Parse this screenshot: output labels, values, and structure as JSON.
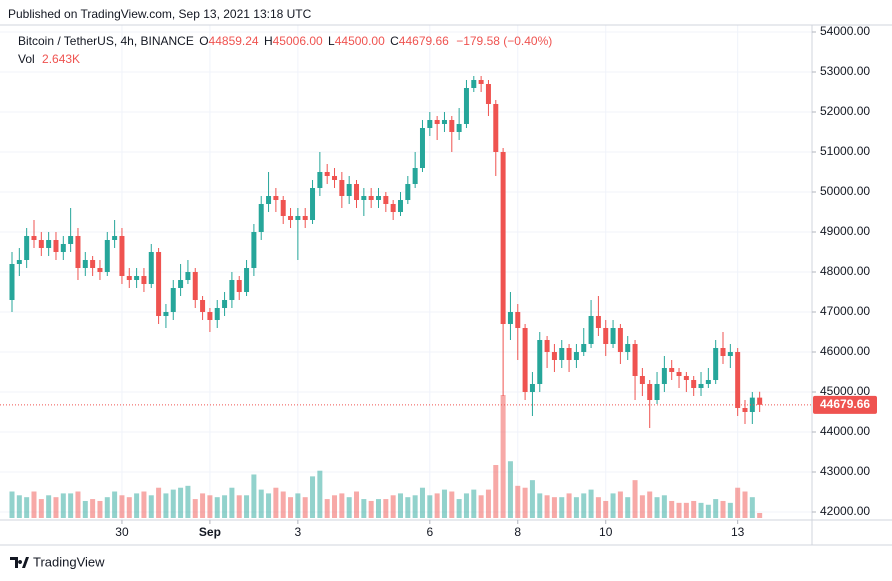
{
  "published": "Published on TradingView.com, Sep 13, 2021 13:18 UTC",
  "footer": "TradingView",
  "chart_data": {
    "type": "candlestick",
    "symbol": "Bitcoin / TetherUS, 4h, BINANCE",
    "legend": {
      "o_key": "O",
      "open": "44859.24",
      "h_key": "H",
      "high": "45006.00",
      "l_key": "L",
      "low": "44500.00",
      "c_key": "C",
      "close": "44679.66",
      "change": "−179.58 (−0.40%)",
      "vol_key": "Vol",
      "volume": "2.643K"
    },
    "up_color": "#26a69a",
    "down_color": "#ef5350",
    "x": [
      "2021-08-27T12:00",
      "2021-08-27T16:00",
      "2021-08-27T20:00",
      "2021-08-28T00:00",
      "2021-08-28T04:00",
      "2021-08-28T08:00",
      "2021-08-28T12:00",
      "2021-08-28T16:00",
      "2021-08-28T20:00",
      "2021-08-29T00:00",
      "2021-08-29T04:00",
      "2021-08-29T08:00",
      "2021-08-29T12:00",
      "2021-08-29T16:00",
      "2021-08-29T20:00",
      "2021-08-30T00:00",
      "2021-08-30T04:00",
      "2021-08-30T08:00",
      "2021-08-30T12:00",
      "2021-08-30T16:00",
      "2021-08-30T20:00",
      "2021-08-31T00:00",
      "2021-08-31T04:00",
      "2021-08-31T08:00",
      "2021-08-31T12:00",
      "2021-08-31T16:00",
      "2021-08-31T20:00",
      "2021-09-01T00:00",
      "2021-09-01T04:00",
      "2021-09-01T08:00",
      "2021-09-01T12:00",
      "2021-09-01T16:00",
      "2021-09-01T20:00",
      "2021-09-02T00:00",
      "2021-09-02T04:00",
      "2021-09-02T08:00",
      "2021-09-02T12:00",
      "2021-09-02T16:00",
      "2021-09-02T20:00",
      "2021-09-03T00:00",
      "2021-09-03T04:00",
      "2021-09-03T08:00",
      "2021-09-03T12:00",
      "2021-09-03T16:00",
      "2021-09-03T20:00",
      "2021-09-04T00:00",
      "2021-09-04T04:00",
      "2021-09-04T08:00",
      "2021-09-04T12:00",
      "2021-09-04T16:00",
      "2021-09-04T20:00",
      "2021-09-05T00:00",
      "2021-09-05T04:00",
      "2021-09-05T08:00",
      "2021-09-05T12:00",
      "2021-09-05T16:00",
      "2021-09-05T20:00",
      "2021-09-06T00:00",
      "2021-09-06T04:00",
      "2021-09-06T08:00",
      "2021-09-06T12:00",
      "2021-09-06T16:00",
      "2021-09-06T20:00",
      "2021-09-07T00:00",
      "2021-09-07T04:00",
      "2021-09-07T08:00",
      "2021-09-07T12:00",
      "2021-09-07T16:00",
      "2021-09-07T20:00",
      "2021-09-08T00:00",
      "2021-09-08T04:00",
      "2021-09-08T08:00",
      "2021-09-08T12:00",
      "2021-09-08T16:00",
      "2021-09-08T20:00",
      "2021-09-09T00:00",
      "2021-09-09T04:00",
      "2021-09-09T08:00",
      "2021-09-09T12:00",
      "2021-09-09T16:00",
      "2021-09-09T20:00",
      "2021-09-10T00:00",
      "2021-09-10T04:00",
      "2021-09-10T08:00",
      "2021-09-10T12:00",
      "2021-09-10T16:00",
      "2021-09-10T20:00",
      "2021-09-11T00:00",
      "2021-09-11T04:00",
      "2021-09-11T08:00",
      "2021-09-11T12:00",
      "2021-09-11T16:00",
      "2021-09-11T20:00",
      "2021-09-12T00:00",
      "2021-09-12T04:00",
      "2021-09-12T08:00",
      "2021-09-12T12:00",
      "2021-09-12T16:00",
      "2021-09-12T20:00",
      "2021-09-13T00:00",
      "2021-09-13T04:00",
      "2021-09-13T08:00",
      "2021-09-13T12:00"
    ],
    "open": [
      47300,
      48200,
      48300,
      48900,
      48800,
      48600,
      48800,
      48500,
      48700,
      48900,
      48100,
      48300,
      48100,
      48000,
      48800,
      48900,
      47900,
      47800,
      47900,
      47700,
      48500,
      46900,
      47000,
      47600,
      47800,
      48000,
      47300,
      47000,
      46800,
      47100,
      47300,
      47800,
      47500,
      48100,
      49000,
      49700,
      49900,
      49800,
      49400,
      49300,
      49400,
      49300,
      50100,
      50500,
      50400,
      50300,
      49900,
      50200,
      49800,
      49900,
      49800,
      49900,
      49700,
      49500,
      49800,
      50200,
      50600,
      51600,
      51800,
      51700,
      51800,
      51500,
      51700,
      52600,
      52800,
      52700,
      52200,
      51000,
      46700,
      47000,
      46600,
      45000,
      45200,
      46300,
      46000,
      45800,
      46100,
      45800,
      46000,
      46200,
      46900,
      46600,
      46200,
      46600,
      46000,
      46200,
      45400,
      45200,
      44800,
      45200,
      45600,
      45500,
      45400,
      45300,
      45100,
      45200,
      45300,
      46100,
      45900,
      46000,
      44600,
      44500,
      44859.24
    ],
    "high": [
      48500,
      48600,
      49100,
      49300,
      49000,
      49000,
      49000,
      48900,
      49600,
      49100,
      48500,
      48400,
      48300,
      49000,
      49300,
      49100,
      48100,
      48100,
      48100,
      48700,
      48600,
      47200,
      47800,
      48200,
      48300,
      48100,
      47400,
      47100,
      47300,
      47500,
      48000,
      47900,
      48300,
      49200,
      49900,
      50500,
      50100,
      49900,
      49600,
      49600,
      49600,
      50300,
      51000,
      50700,
      50600,
      50500,
      50400,
      50300,
      50100,
      50100,
      50100,
      50000,
      49800,
      50000,
      50400,
      51000,
      51800,
      52000,
      51900,
      52000,
      51900,
      52100,
      52800,
      52900,
      52900,
      52800,
      52300,
      51100,
      47500,
      47200,
      46700,
      45500,
      46500,
      46400,
      46200,
      46300,
      46200,
      46200,
      46600,
      47300,
      47400,
      46800,
      46800,
      46700,
      46400,
      46300,
      45600,
      45300,
      45500,
      45900,
      45800,
      45600,
      45500,
      45400,
      45500,
      45600,
      46300,
      46500,
      46200,
      46100,
      44800,
      45000,
      45006
    ],
    "low": [
      47000,
      47900,
      48100,
      48600,
      48400,
      48400,
      48300,
      48300,
      48500,
      47800,
      47900,
      47900,
      47800,
      47900,
      48600,
      47700,
      47600,
      47600,
      47500,
      47600,
      46700,
      46600,
      46800,
      47400,
      47700,
      47100,
      46800,
      46500,
      46600,
      46900,
      47100,
      47300,
      47400,
      47900,
      48800,
      49500,
      49500,
      49200,
      49100,
      48300,
      49100,
      49200,
      49900,
      50200,
      50100,
      49600,
      49700,
      49600,
      49400,
      49600,
      49600,
      49500,
      49300,
      49400,
      49700,
      50100,
      50500,
      51400,
      51300,
      51500,
      51000,
      51300,
      51600,
      52500,
      52500,
      51900,
      50400,
      44900,
      46300,
      45800,
      44800,
      44400,
      45000,
      45600,
      45500,
      45600,
      45500,
      45600,
      45900,
      46100,
      46400,
      45900,
      46100,
      45700,
      45800,
      44800,
      44900,
      44100,
      44700,
      45000,
      45300,
      45100,
      45000,
      44900,
      44900,
      45100,
      45200,
      45700,
      45600,
      44400,
      44200,
      44200,
      44500
    ],
    "close": [
      48200,
      48300,
      48900,
      48800,
      48600,
      48800,
      48500,
      48700,
      48900,
      48100,
      48300,
      48100,
      48000,
      48800,
      48900,
      47900,
      47800,
      47900,
      47700,
      48500,
      46900,
      47000,
      47600,
      47800,
      48000,
      47300,
      47000,
      46800,
      47100,
      47300,
      47800,
      47500,
      48100,
      49000,
      49700,
      49900,
      49800,
      49400,
      49300,
      49400,
      49300,
      50100,
      50500,
      50400,
      50300,
      49900,
      50200,
      49800,
      49900,
      49800,
      49900,
      49700,
      49500,
      49800,
      50200,
      50600,
      51600,
      51800,
      51700,
      51800,
      51500,
      51700,
      52600,
      52800,
      52700,
      52200,
      51000,
      46700,
      47000,
      46600,
      45000,
      45200,
      46300,
      46000,
      45800,
      46100,
      45800,
      46000,
      46200,
      46900,
      46600,
      46200,
      46600,
      46000,
      46200,
      45400,
      45200,
      44800,
      45200,
      45600,
      45500,
      45400,
      45300,
      45100,
      45200,
      45300,
      46100,
      45900,
      46000,
      44600,
      44500,
      44859.24,
      44679.66
    ],
    "volume": [
      14000,
      12000,
      11000,
      14000,
      10000,
      12000,
      11000,
      13000,
      13000,
      14000,
      9000,
      10000,
      9000,
      11000,
      14000,
      12000,
      11000,
      13000,
      14000,
      12000,
      16000,
      13000,
      15000,
      16000,
      17000,
      10000,
      13000,
      12000,
      11000,
      12000,
      16000,
      12000,
      12000,
      23000,
      15000,
      13000,
      16000,
      14000,
      11000,
      13000,
      11000,
      22000,
      25000,
      10000,
      12000,
      13000,
      11000,
      14000,
      10000,
      9000,
      10000,
      10000,
      12000,
      13000,
      11000,
      12000,
      16000,
      12000,
      13000,
      15000,
      14000,
      10000,
      13000,
      15000,
      12000,
      15000,
      28000,
      65000,
      30000,
      17000,
      16000,
      20000,
      13000,
      12000,
      11000,
      11000,
      13000,
      11000,
      13000,
      15000,
      11000,
      9000,
      13000,
      14000,
      11000,
      20000,
      12000,
      14000,
      11000,
      12000,
      9000,
      8000,
      8000,
      9000,
      8000,
      7000,
      10000,
      9000,
      8000,
      16000,
      14000,
      11000,
      2643
    ],
    "ylim": [
      41850,
      54175
    ],
    "yticks": [
      {
        "value": 42000,
        "label": "42000.00"
      },
      {
        "value": 43000,
        "label": "43000.00"
      },
      {
        "value": 44000,
        "label": "44000.00"
      },
      {
        "value": 45000,
        "label": "45000.00"
      },
      {
        "value": 46000,
        "label": "46000.00"
      },
      {
        "value": 47000,
        "label": "47000.00"
      },
      {
        "value": 48000,
        "label": "48000.00"
      },
      {
        "value": 49000,
        "label": "49000.00"
      },
      {
        "value": 50000,
        "label": "50000.00"
      },
      {
        "value": 51000,
        "label": "51000.00"
      },
      {
        "value": 52000,
        "label": "52000.00"
      },
      {
        "value": 53000,
        "label": "53000.00"
      },
      {
        "value": 54000,
        "label": "54000.00"
      }
    ],
    "xticks": [
      {
        "value": "2021-08-30T00:00",
        "label": "30"
      },
      {
        "value": "2021-09-01T00:00",
        "label": "Sep"
      },
      {
        "value": "2021-09-03T00:00",
        "label": "3"
      },
      {
        "value": "2021-09-06T00:00",
        "label": "6"
      },
      {
        "value": "2021-09-08T00:00",
        "label": "8"
      },
      {
        "value": "2021-09-10T00:00",
        "label": "10"
      },
      {
        "value": "2021-09-13T00:00",
        "label": "13"
      }
    ],
    "grid": true
  }
}
